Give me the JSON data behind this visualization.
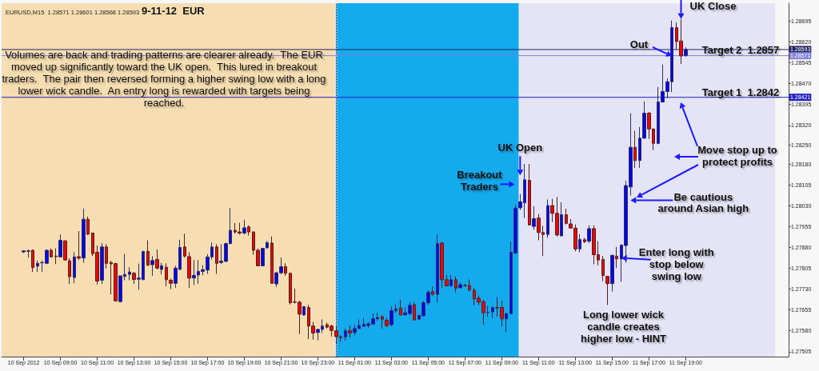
{
  "chart_data": {
    "type": "candlestick",
    "title": "9-11-12  EUR",
    "subtitle": "EURUSD,M15  1.28571 1.28601 1.28568 1.28593",
    "x": [
      "2012-09-10T07:00",
      "2012-09-10T07:15",
      "2012-09-10T07:30",
      "2012-09-10T07:45",
      "2012-09-10T08:00",
      "2012-09-10T08:15",
      "2012-09-10T08:30",
      "2012-09-10T08:45",
      "2012-09-10T09:00",
      "2012-09-10T09:15",
      "2012-09-10T09:30",
      "2012-09-10T09:45",
      "2012-09-10T10:00",
      "2012-09-10T10:15",
      "2012-09-10T10:30",
      "2012-09-10T10:45",
      "2012-09-10T11:00",
      "2012-09-10T11:15",
      "2012-09-10T11:30",
      "2012-09-10T11:45",
      "2012-09-10T12:00",
      "2012-09-10T12:15",
      "2012-09-10T12:30",
      "2012-09-10T12:45",
      "2012-09-10T13:00",
      "2012-09-10T13:15",
      "2012-09-10T13:30",
      "2012-09-10T13:45",
      "2012-09-10T14:00",
      "2012-09-10T14:15",
      "2012-09-10T14:30",
      "2012-09-10T14:45",
      "2012-09-10T15:00",
      "2012-09-10T15:15",
      "2012-09-10T15:30",
      "2012-09-10T15:45",
      "2012-09-10T16:00",
      "2012-09-10T16:15",
      "2012-09-10T16:30",
      "2012-09-10T16:45",
      "2012-09-10T17:00",
      "2012-09-10T17:15",
      "2012-09-10T17:30",
      "2012-09-10T17:45",
      "2012-09-10T18:00",
      "2012-09-10T18:15",
      "2012-09-10T18:30",
      "2012-09-10T18:45",
      "2012-09-10T19:00",
      "2012-09-10T19:15",
      "2012-09-10T19:30",
      "2012-09-10T19:45",
      "2012-09-10T20:00",
      "2012-09-10T20:15",
      "2012-09-10T20:30",
      "2012-09-10T20:45",
      "2012-09-10T21:00",
      "2012-09-10T21:15",
      "2012-09-10T21:30",
      "2012-09-10T21:45",
      "2012-09-10T22:00",
      "2012-09-10T22:15",
      "2012-09-10T22:30",
      "2012-09-10T22:45",
      "2012-09-10T23:00",
      "2012-09-10T23:15",
      "2012-09-10T23:30",
      "2012-09-10T23:45",
      "2012-09-11T00:00",
      "2012-09-11T00:15",
      "2012-09-11T00:30",
      "2012-09-11T00:45",
      "2012-09-11T01:00",
      "2012-09-11T01:15",
      "2012-09-11T01:30",
      "2012-09-11T01:45",
      "2012-09-11T02:00",
      "2012-09-11T02:15",
      "2012-09-11T02:30",
      "2012-09-11T02:45",
      "2012-09-11T03:00",
      "2012-09-11T03:15",
      "2012-09-11T03:30",
      "2012-09-11T03:45",
      "2012-09-11T04:00",
      "2012-09-11T04:15",
      "2012-09-11T04:30",
      "2012-09-11T04:45",
      "2012-09-11T05:00",
      "2012-09-11T05:15",
      "2012-09-11T05:30",
      "2012-09-11T05:45",
      "2012-09-11T06:00",
      "2012-09-11T06:15",
      "2012-09-11T06:30",
      "2012-09-11T06:45",
      "2012-09-11T07:00",
      "2012-09-11T07:15",
      "2012-09-11T07:30",
      "2012-09-11T07:45",
      "2012-09-11T08:00",
      "2012-09-11T08:15",
      "2012-09-11T08:30",
      "2012-09-11T08:45",
      "2012-09-11T09:00",
      "2012-09-11T09:15",
      "2012-09-11T09:30",
      "2012-09-11T09:45",
      "2012-09-11T10:00",
      "2012-09-11T10:15",
      "2012-09-11T10:30",
      "2012-09-11T10:45",
      "2012-09-11T11:00",
      "2012-09-11T11:15",
      "2012-09-11T11:30",
      "2012-09-11T11:45",
      "2012-09-11T12:00",
      "2012-09-11T12:15",
      "2012-09-11T12:30",
      "2012-09-11T12:45",
      "2012-09-11T13:00",
      "2012-09-11T13:15",
      "2012-09-11T13:30",
      "2012-09-11T13:45",
      "2012-09-11T14:00",
      "2012-09-11T14:15",
      "2012-09-11T14:30",
      "2012-09-11T14:45",
      "2012-09-11T15:00",
      "2012-09-11T15:15",
      "2012-09-11T15:30",
      "2012-09-11T15:45",
      "2012-09-11T16:00",
      "2012-09-11T16:15",
      "2012-09-11T16:30",
      "2012-09-11T16:45",
      "2012-09-11T17:00",
      "2012-09-11T17:15",
      "2012-09-11T17:30",
      "2012-09-11T17:45",
      "2012-09-11T18:00",
      "2012-09-11T18:15",
      "2012-09-11T18:30",
      "2012-09-11T18:45",
      "2012-09-11T19:00"
    ],
    "ohlc": [
      [
        1.27864,
        1.2787,
        1.2786,
        1.27868
      ],
      [
        1.27866,
        1.27873,
        1.27844,
        1.27868
      ],
      [
        1.2787,
        1.27873,
        1.27792,
        1.27808
      ],
      [
        1.27813,
        1.27833,
        1.27792,
        1.27823
      ],
      [
        1.27825,
        1.27833,
        1.27792,
        1.27826
      ],
      [
        1.27823,
        1.27873,
        1.2782,
        1.2787
      ],
      [
        1.2787,
        1.27877,
        1.27844,
        1.27846
      ],
      [
        1.27849,
        1.27877,
        1.2782,
        1.27847
      ],
      [
        1.27846,
        1.27927,
        1.27844,
        1.27906
      ],
      [
        1.27904,
        1.27906,
        1.27833,
        1.27835
      ],
      [
        1.27832,
        1.27841,
        1.27749,
        1.27775
      ],
      [
        1.27772,
        1.27863,
        1.27751,
        1.27846
      ],
      [
        1.27847,
        1.27939,
        1.27835,
        1.27842
      ],
      [
        1.27842,
        1.2802,
        1.27825,
        1.27982
      ],
      [
        1.27982,
        1.27991,
        1.27925,
        1.27928
      ],
      [
        1.27932,
        1.27934,
        1.27849,
        1.27858
      ],
      [
        1.27863,
        1.27887,
        1.27747,
        1.27759
      ],
      [
        1.27762,
        1.27896,
        1.27749,
        1.27882
      ],
      [
        1.27882,
        1.27892,
        1.27804,
        1.27823
      ],
      [
        1.27826,
        1.27832,
        1.27711,
        1.27821
      ],
      [
        1.27822,
        1.27825,
        1.27685,
        1.27688
      ],
      [
        1.27685,
        1.27778,
        1.27682,
        1.27778
      ],
      [
        1.27776,
        1.27857,
        1.27762,
        1.27783
      ],
      [
        1.27783,
        1.27809,
        1.27762,
        1.27792
      ],
      [
        1.27787,
        1.27792,
        1.27749,
        1.27765
      ],
      [
        1.27766,
        1.27822,
        1.27728,
        1.2777
      ],
      [
        1.27764,
        1.27868,
        1.27763,
        1.27866
      ],
      [
        1.27866,
        1.27906,
        1.27814,
        1.27816
      ],
      [
        1.27818,
        1.27849,
        1.27778,
        1.27833
      ],
      [
        1.27837,
        1.27873,
        1.27801,
        1.27806
      ],
      [
        1.27801,
        1.27825,
        1.27783,
        1.27814
      ],
      [
        1.27809,
        1.27823,
        1.2774,
        1.27764
      ],
      [
        1.27762,
        1.27768,
        1.2773,
        1.27751
      ],
      [
        1.27751,
        1.27814,
        1.27735,
        1.27806
      ],
      [
        1.27801,
        1.27908,
        1.278,
        1.2788
      ],
      [
        1.27882,
        1.2793,
        1.27844,
        1.27849
      ],
      [
        1.27847,
        1.27863,
        1.27735,
        1.2777
      ],
      [
        1.2777,
        1.27835,
        1.27745,
        1.2778
      ],
      [
        1.27781,
        1.27835,
        1.27749,
        1.27794
      ],
      [
        1.27794,
        1.27816,
        1.2778,
        1.278
      ],
      [
        1.27799,
        1.27856,
        1.27785,
        1.27846
      ],
      [
        1.27846,
        1.27898,
        1.27837,
        1.27882
      ],
      [
        1.27882,
        1.27892,
        1.27785,
        1.27823
      ],
      [
        1.27826,
        1.27892,
        1.2782,
        1.27831
      ],
      [
        1.2783,
        1.27898,
        1.27828,
        1.27894
      ],
      [
        1.27894,
        1.28022,
        1.27892,
        1.27942
      ],
      [
        1.27942,
        1.27968,
        1.2793,
        1.27936
      ],
      [
        1.27936,
        1.27969,
        1.27927,
        1.27932
      ],
      [
        1.27932,
        1.2798,
        1.27927,
        1.27951
      ],
      [
        1.27954,
        1.2796,
        1.27923,
        1.27936
      ],
      [
        1.27936,
        1.27939,
        1.27854,
        1.2787
      ],
      [
        1.2787,
        1.27877,
        1.27814,
        1.27814
      ],
      [
        1.27814,
        1.27877,
        1.27812,
        1.27877
      ],
      [
        1.27879,
        1.27903,
        1.27875,
        1.27898
      ],
      [
        1.27896,
        1.2792,
        1.27749,
        1.27751
      ],
      [
        1.27749,
        1.27792,
        1.27738,
        1.27789
      ],
      [
        1.27789,
        1.27844,
        1.27783,
        1.27811
      ],
      [
        1.27811,
        1.27823,
        1.27778,
        1.27787
      ],
      [
        1.27787,
        1.27789,
        1.27675,
        1.27681
      ],
      [
        1.27684,
        1.27732,
        1.27678,
        1.27683
      ],
      [
        1.27683,
        1.27688,
        1.27569,
        1.2764
      ],
      [
        1.27637,
        1.27669,
        1.27635,
        1.27667
      ],
      [
        1.27664,
        1.27673,
        1.2755,
        1.27597
      ],
      [
        1.27597,
        1.27612,
        1.27548,
        1.27572
      ],
      [
        1.27574,
        1.27588,
        1.27545,
        1.27585
      ],
      [
        1.27585,
        1.27621,
        1.27572,
        1.27597
      ],
      [
        1.27602,
        1.27609,
        1.27588,
        1.27593
      ],
      [
        1.27597,
        1.27602,
        1.27559,
        1.27581
      ],
      [
        1.2758,
        1.27596,
        1.27536,
        1.27559
      ],
      [
        1.27558,
        1.27564,
        1.27541,
        1.27555
      ],
      [
        1.27558,
        1.27588,
        1.27545,
        1.2758
      ],
      [
        1.2758,
        1.27599,
        1.27555,
        1.27572
      ],
      [
        1.27574,
        1.27602,
        1.27564,
        1.27588
      ],
      [
        1.27588,
        1.27621,
        1.27588,
        1.27599
      ],
      [
        1.27596,
        1.27626,
        1.27595,
        1.27604
      ],
      [
        1.27599,
        1.27612,
        1.2759,
        1.27605
      ],
      [
        1.27604,
        1.27642,
        1.27602,
        1.27623
      ],
      [
        1.27623,
        1.27645,
        1.27616,
        1.27628
      ],
      [
        1.27631,
        1.27636,
        1.27588,
        1.27622
      ],
      [
        1.27618,
        1.27626,
        1.27593,
        1.27599
      ],
      [
        1.27602,
        1.27669,
        1.27596,
        1.27653
      ],
      [
        1.27652,
        1.27676,
        1.27645,
        1.27659
      ],
      [
        1.27662,
        1.27692,
        1.27636,
        1.27637
      ],
      [
        1.27637,
        1.27664,
        1.27636,
        1.27645
      ],
      [
        1.27642,
        1.27683,
        1.27636,
        1.27672
      ],
      [
        1.27674,
        1.27683,
        1.27619,
        1.27619
      ],
      [
        1.27622,
        1.27637,
        1.27621,
        1.27636
      ],
      [
        1.27634,
        1.27688,
        1.27631,
        1.27681
      ],
      [
        1.27681,
        1.27726,
        1.27673,
        1.27719
      ],
      [
        1.27721,
        1.2774,
        1.27707,
        1.27711
      ],
      [
        1.27711,
        1.27927,
        1.27683,
        1.27894
      ],
      [
        1.27896,
        1.27901,
        1.27735,
        1.27764
      ],
      [
        1.27764,
        1.27781,
        1.27742,
        1.27742
      ],
      [
        1.27742,
        1.27781,
        1.27738,
        1.27764
      ],
      [
        1.27764,
        1.27776,
        1.27719,
        1.27734
      ],
      [
        1.27735,
        1.27754,
        1.27733,
        1.27746
      ],
      [
        1.27744,
        1.27749,
        1.27738,
        1.27743
      ],
      [
        1.27743,
        1.27765,
        1.27721,
        1.27728
      ],
      [
        1.27726,
        1.27735,
        1.27672,
        1.27695
      ],
      [
        1.27697,
        1.27707,
        1.27673,
        1.27683
      ],
      [
        1.27685,
        1.27692,
        1.27602,
        1.27645
      ],
      [
        1.27646,
        1.27669,
        1.27631,
        1.27647
      ],
      [
        1.27648,
        1.27667,
        1.27626,
        1.27664
      ],
      [
        1.27663,
        1.27702,
        1.27631,
        1.27663
      ],
      [
        1.27664,
        1.27688,
        1.27596,
        1.27623
      ],
      [
        1.27623,
        1.27645,
        1.27574,
        1.27642
      ],
      [
        1.27642,
        1.27901,
        1.2764,
        1.27863
      ],
      [
        1.2786,
        1.28034,
        1.27856,
        1.28022
      ],
      [
        1.28023,
        1.28072,
        1.28015,
        1.28045
      ],
      [
        1.28041,
        1.28181,
        1.27986,
        1.28124
      ],
      [
        1.28122,
        1.28181,
        1.27961,
        1.27961
      ],
      [
        1.27956,
        1.28029,
        1.27944,
        1.27984
      ],
      [
        1.27986,
        1.28001,
        1.27906,
        1.27934
      ],
      [
        1.27934,
        1.27958,
        1.27849,
        1.27927
      ],
      [
        1.27927,
        1.28053,
        1.27915,
        1.28031
      ],
      [
        1.28031,
        1.28055,
        1.27972,
        1.28003
      ],
      [
        1.28003,
        1.28062,
        1.2792,
        1.27925
      ],
      [
        1.27922,
        1.28043,
        1.2792,
        1.27998
      ],
      [
        1.27998,
        1.2802,
        1.27963,
        1.27967
      ],
      [
        1.27965,
        1.27982,
        1.27948,
        1.2795
      ],
      [
        1.2795,
        1.27963,
        1.27866,
        1.27875
      ],
      [
        1.27875,
        1.27928,
        1.27863,
        1.27909
      ],
      [
        1.27908,
        1.27915,
        1.27896,
        1.27901
      ],
      [
        1.27903,
        1.2796,
        1.27896,
        1.27948
      ],
      [
        1.27948,
        1.2796,
        1.2782,
        1.27854
      ],
      [
        1.27854,
        1.27903,
        1.27816,
        1.27835
      ],
      [
        1.27837,
        1.27849,
        1.27759,
        1.27779
      ],
      [
        1.27776,
        1.27778,
        1.27673,
        1.2775
      ],
      [
        1.2775,
        1.27854,
        1.27721,
        1.27852
      ],
      [
        1.27849,
        1.27882,
        1.27806,
        1.27839
      ],
      [
        1.27839,
        1.27891,
        1.27756,
        1.27889
      ],
      [
        1.27887,
        1.28121,
        1.27825,
        1.28103
      ],
      [
        1.28098,
        1.28364,
        1.28067,
        1.28241
      ],
      [
        1.28241,
        1.283,
        1.28167,
        1.28193
      ],
      [
        1.28193,
        1.28314,
        1.28167,
        1.28274
      ],
      [
        1.28274,
        1.28406,
        1.28271,
        1.28364
      ],
      [
        1.28364,
        1.28368,
        1.28271,
        1.28307
      ],
      [
        1.28307,
        1.28309,
        1.28231,
        1.28255
      ],
      [
        1.28255,
        1.28458,
        1.28252,
        1.28404
      ],
      [
        1.28404,
        1.28539,
        1.28402,
        1.28442
      ],
      [
        1.28442,
        1.28489,
        1.28418,
        1.28477
      ],
      [
        1.28477,
        1.28698,
        1.2844,
        1.28672
      ],
      [
        1.28672,
        1.2869,
        1.28594,
        1.28622
      ],
      [
        1.28624,
        1.28703,
        1.28541,
        1.2857
      ],
      [
        1.28571,
        1.28601,
        1.28568,
        1.28593
      ]
    ],
    "xlim": [
      "2012-09-10T05:48",
      "2012-09-12T00:36"
    ],
    "xticks": [
      {
        "value": "2012-09-10T07:00",
        "label": "10 Sep 2012"
      },
      {
        "value": "2012-09-10T09:00",
        "label": "10 Sep 09:00"
      },
      {
        "value": "2012-09-10T11:00",
        "label": "10 Sep 11:00"
      },
      {
        "value": "2012-09-10T13:00",
        "label": "10 Sep 13:00"
      },
      {
        "value": "2012-09-10T15:00",
        "label": "10 Sep 15:00"
      },
      {
        "value": "2012-09-10T17:00",
        "label": "10 Sep 17:00"
      },
      {
        "value": "2012-09-10T19:00",
        "label": "10 Sep 19:00"
      },
      {
        "value": "2012-09-10T21:00",
        "label": "10 Sep 21:00"
      },
      {
        "value": "2012-09-10T23:00",
        "label": "10 Sep 23:00"
      },
      {
        "value": "2012-09-11T01:00",
        "label": "11 Sep 01:00"
      },
      {
        "value": "2012-09-11T03:00",
        "label": "11 Sep 03:00"
      },
      {
        "value": "2012-09-11T05:00",
        "label": "11 Sep 05:00"
      },
      {
        "value": "2012-09-11T07:00",
        "label": "11 Sep 07:00"
      },
      {
        "value": "2012-09-11T09:00",
        "label": "11 Sep 09:00"
      },
      {
        "value": "2012-09-11T11:00",
        "label": "11 Sep 11:00"
      },
      {
        "value": "2012-09-11T13:00",
        "label": "11 Sep 13:00"
      },
      {
        "value": "2012-09-11T15:00",
        "label": "11 Sep 15:00"
      },
      {
        "value": "2012-09-11T17:00",
        "label": "11 Sep 17:00"
      },
      {
        "value": "2012-09-11T19:00",
        "label": "11 Sep 19:00"
      }
    ],
    "ylim": [
      1.27487,
      1.2876
    ],
    "yticks": [
      {
        "value": 1.27505,
        "label": "1.27505"
      },
      {
        "value": 1.2758,
        "label": "1.27580"
      },
      {
        "value": 1.27655,
        "label": "1.27655"
      },
      {
        "value": 1.2773,
        "label": "1.27730"
      },
      {
        "value": 1.27805,
        "label": "1.27805"
      },
      {
        "value": 1.2788,
        "label": "1.27880"
      },
      {
        "value": 1.27955,
        "label": "1.27955"
      },
      {
        "value": 1.2803,
        "label": "1.28030"
      },
      {
        "value": 1.28105,
        "label": "1.28105"
      },
      {
        "value": 1.2818,
        "label": "1.28180"
      },
      {
        "value": 1.2825,
        "label": "1.28250"
      },
      {
        "value": 1.2832,
        "label": "1.28320"
      },
      {
        "value": 1.28395,
        "label": "1.28395"
      },
      {
        "value": 1.2847,
        "label": "1.28470"
      },
      {
        "value": 1.28545,
        "label": "1.28545"
      },
      {
        "value": 1.2862,
        "label": "1.28620"
      },
      {
        "value": 1.28695,
        "label": "1.28695"
      }
    ],
    "bands": [
      {
        "axis": "x",
        "from": "2012-09-10T23:55",
        "to": "2012-09-11T23:52",
        "color": "#e4e4f6"
      },
      {
        "axis": "x",
        "from": "2012-09-10T05:48",
        "to": "2012-09-10T23:55",
        "color": "#f6deb2"
      },
      {
        "axis": "x",
        "from": "2012-09-11T00:02",
        "to": "2012-09-11T09:55",
        "color": "#14aaee"
      }
    ],
    "ref_lines": [
      {
        "axis": "x",
        "value": "2012-09-11T00:00",
        "color": "#000000",
        "line_style": "dotted"
      },
      {
        "axis": "y",
        "value": 1.28593,
        "label": "1.28593",
        "color": "#202060",
        "line_style": "solid"
      },
      {
        "axis": "y",
        "value": 1.28571,
        "label": "1.28571",
        "color": "#8080d8",
        "line_style": "solid"
      },
      {
        "axis": "y",
        "value": 1.28421,
        "label": "1.28421",
        "color": "#2020c0",
        "line_style": "solid"
      }
    ],
    "annotations": [
      "Volumes are back and trading patterns are clearer already.  The EUR moved up significantly toward the UK open.  This lured in breakout traders.  The pair then reversed forming a higher swing low with a long lower wick candle.  An entry long is rewarded with targets being reached.",
      {
        "text": "UK Close",
        "x": "2012-09-11T18:45",
        "y": 1.28703
      },
      {
        "text": "Out",
        "x": "2012-09-11T18:15",
        "y": 1.2857
      },
      "Target 2  1.2857",
      "Target 1  1.2842",
      {
        "text": "UK Open",
        "x": "2012-09-11T10:00",
        "y": 1.2814
      },
      {
        "text": "Breakout Traders",
        "x": "2012-09-11T09:42",
        "y": 1.28108
      },
      "Move stop up to protect profits",
      {
        "text": "Be cautious around Asian high",
        "x": "2012-09-11T16:00",
        "y": 1.2805
      },
      {
        "text": "Enter long with stop below swing low",
        "x": "2012-09-11T15:30",
        "y": 1.27842
      },
      {
        "text": "Long lower wick candle creates higher low - HINT",
        "x": "2012-09-11T14:45",
        "y": 1.27673
      }
    ]
  }
}
